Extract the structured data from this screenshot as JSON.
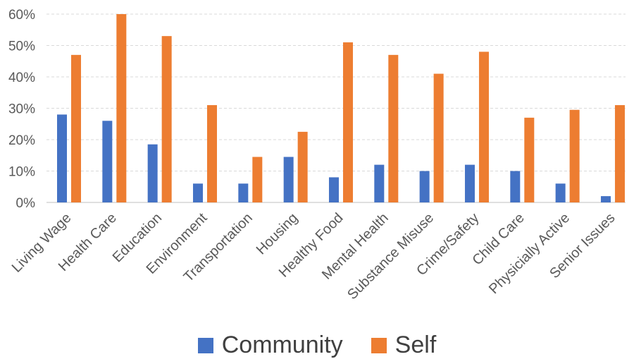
{
  "chart_data": {
    "type": "bar",
    "categories": [
      "Living Wage",
      "Health Care",
      "Education",
      "Environment",
      "Transportation",
      "Housing",
      "Healthy Food",
      "Mental Health",
      "Substance Misuse",
      "Crime/Safety",
      "Child Care",
      "Physicially Active",
      "Senior Issues"
    ],
    "series": [
      {
        "name": "Community",
        "values": [
          28,
          26,
          18.5,
          6,
          6,
          14.5,
          8,
          12,
          10,
          12,
          10,
          6,
          2
        ],
        "color": "#4472C4"
      },
      {
        "name": "Self",
        "values": [
          47,
          60,
          53,
          31,
          14.5,
          22.5,
          51,
          47,
          41,
          48,
          27,
          29.5,
          31
        ],
        "color": "#ED7D31"
      }
    ],
    "ylim": [
      0,
      60
    ],
    "y_ticks": [
      "0%",
      "10%",
      "20%",
      "30%",
      "40%",
      "50%",
      "60%"
    ],
    "grid": true,
    "legend_position": "bottom"
  }
}
